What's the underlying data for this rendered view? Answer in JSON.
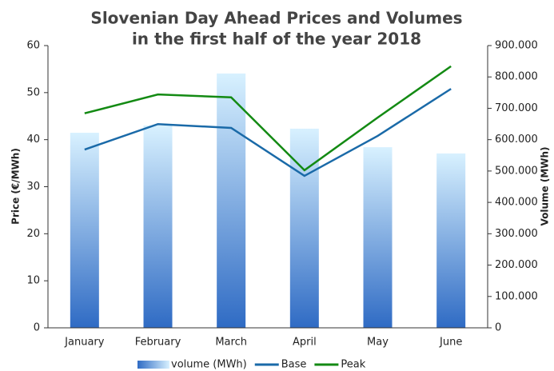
{
  "chart_data": {
    "type": "bar-line",
    "title": [
      "Slovenian Day Ahead Prices and Volumes",
      "in the first half of the year 2018"
    ],
    "ylabel": "Price (€/MWh)",
    "y2label": "Volume (MWh)",
    "categories": [
      "January",
      "February",
      "March",
      "April",
      "May",
      "June"
    ],
    "series": [
      {
        "name": "volume (MWh)",
        "type": "bar",
        "axis": "y2",
        "color": "#2f6bc4",
        "values": [
          622000,
          645000,
          811000,
          635000,
          576000,
          556000
        ]
      },
      {
        "name": "Base",
        "type": "line",
        "axis": "y",
        "color": "#1a6aa8",
        "values": [
          37.9,
          43.3,
          42.5,
          32.3,
          40.8,
          50.8
        ]
      },
      {
        "name": "Peak",
        "type": "line",
        "axis": "y",
        "color": "#138a13",
        "values": [
          45.6,
          49.6,
          49.0,
          33.5,
          44.7,
          55.6
        ]
      }
    ],
    "ylim": [
      0,
      60
    ],
    "yticks": [
      0,
      10,
      20,
      30,
      40,
      50,
      60
    ],
    "y2lim": [
      0,
      900000
    ],
    "y2ticks": [
      0,
      {
        "value": 100000,
        "label": "100.000"
      },
      {
        "value": 200000,
        "label": "200.000"
      },
      {
        "value": 300000,
        "label": "300.000"
      },
      {
        "value": 400000,
        "label": "400.000"
      },
      {
        "value": 500000,
        "label": "500.000"
      },
      {
        "value": 600000,
        "label": "600.000"
      },
      {
        "value": 700000,
        "label": "700.000"
      },
      {
        "value": 800000,
        "label": "800.000"
      },
      {
        "value": 900000,
        "label": "900.000"
      }
    ],
    "legend": "bottom"
  }
}
